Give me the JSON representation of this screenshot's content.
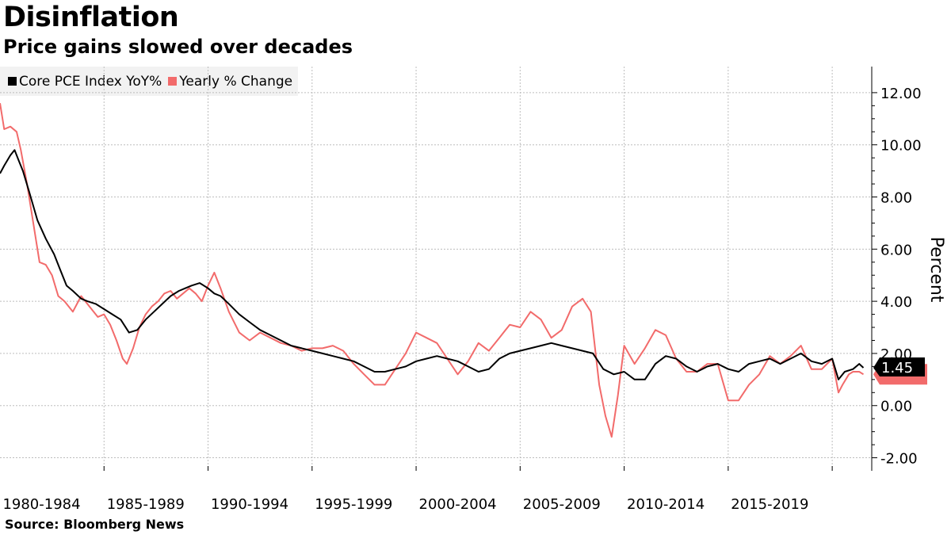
{
  "title": "Disinflation",
  "subtitle": "Price gains slowed over decades",
  "source": "Source: Bloomberg News",
  "chart_data": {
    "type": "line",
    "ylabel": "Percent",
    "ylim": [
      -2.5,
      13
    ],
    "yticks": [
      -2,
      0,
      2,
      4,
      6,
      8,
      10,
      12
    ],
    "ytick_labels": [
      "-2.00",
      "0.00",
      "2.00",
      "4.00",
      "6.00",
      "8.00",
      "10.00",
      "12.00"
    ],
    "xlim": [
      1980.0,
      2021.9
    ],
    "x_grid_years": [
      1985,
      1990,
      1995,
      2000,
      2005,
      2010,
      2015,
      2020
    ],
    "x_label_positions": [
      1982,
      1987,
      1992,
      1997,
      2002,
      2007,
      2012,
      2017
    ],
    "xtick_labels": [
      "1980-1984",
      "1985-1989",
      "1990-1994",
      "1995-1999",
      "2000-2004",
      "2005-2009",
      "2010-2014",
      "2015-2019"
    ],
    "grid": true,
    "last_value_label": "1.45",
    "series": [
      {
        "name": "Core PCE Index YoY%",
        "color": "#000000",
        "x": [
          1980.0,
          1980.2,
          1980.5,
          1980.7,
          1980.9,
          1981.1,
          1981.4,
          1981.8,
          1982.2,
          1982.6,
          1982.9,
          1983.2,
          1983.5,
          1983.9,
          1984.2,
          1984.6,
          1985.0,
          1985.4,
          1985.8,
          1986.2,
          1986.6,
          1987.0,
          1987.4,
          1987.8,
          1988.2,
          1988.6,
          1988.9,
          1989.2,
          1989.6,
          1990.0,
          1990.3,
          1990.6,
          1991.0,
          1991.5,
          1992.0,
          1992.5,
          1993.0,
          1993.5,
          1994.0,
          1994.5,
          1995.0,
          1995.5,
          1996.0,
          1996.5,
          1997.0,
          1997.5,
          1998.0,
          1998.5,
          1999.0,
          1999.5,
          2000.0,
          2000.5,
          2001.0,
          2001.5,
          2002.0,
          2002.5,
          2003.0,
          2003.5,
          2004.0,
          2004.5,
          2005.0,
          2005.5,
          2006.0,
          2006.5,
          2007.0,
          2007.5,
          2008.0,
          2008.5,
          2009.0,
          2009.5,
          2010.0,
          2010.5,
          2011.0,
          2011.5,
          2012.0,
          2012.5,
          2013.0,
          2013.5,
          2014.0,
          2014.5,
          2015.0,
          2015.5,
          2016.0,
          2016.5,
          2017.0,
          2017.5,
          2018.0,
          2018.5,
          2019.0,
          2019.5,
          2020.0,
          2020.3,
          2020.6,
          2021.0,
          2021.3,
          2021.5
        ],
        "values": [
          8.9,
          9.2,
          9.6,
          9.8,
          9.4,
          9.0,
          8.2,
          7.1,
          6.4,
          5.8,
          5.2,
          4.6,
          4.4,
          4.1,
          4.0,
          3.9,
          3.7,
          3.5,
          3.3,
          2.8,
          2.9,
          3.3,
          3.6,
          3.9,
          4.2,
          4.4,
          4.5,
          4.6,
          4.7,
          4.5,
          4.3,
          4.2,
          3.9,
          3.5,
          3.2,
          2.9,
          2.7,
          2.5,
          2.3,
          2.2,
          2.1,
          2.0,
          1.9,
          1.8,
          1.7,
          1.5,
          1.3,
          1.3,
          1.4,
          1.5,
          1.7,
          1.8,
          1.9,
          1.8,
          1.7,
          1.5,
          1.3,
          1.4,
          1.8,
          2.0,
          2.1,
          2.2,
          2.3,
          2.4,
          2.3,
          2.2,
          2.1,
          2.0,
          1.4,
          1.2,
          1.3,
          1.0,
          1.0,
          1.6,
          1.9,
          1.8,
          1.5,
          1.3,
          1.5,
          1.6,
          1.4,
          1.3,
          1.6,
          1.7,
          1.8,
          1.6,
          1.8,
          2.0,
          1.7,
          1.6,
          1.8,
          1.0,
          1.3,
          1.4,
          1.6,
          1.45
        ]
      },
      {
        "name": "Yearly % Change",
        "color": "#f26b6b",
        "x": [
          1980.0,
          1980.2,
          1980.5,
          1980.8,
          1981.0,
          1981.3,
          1981.6,
          1981.9,
          1982.2,
          1982.5,
          1982.8,
          1983.1,
          1983.5,
          1983.9,
          1984.3,
          1984.7,
          1985.0,
          1985.3,
          1985.6,
          1985.9,
          1986.1,
          1986.4,
          1986.7,
          1987.0,
          1987.3,
          1987.6,
          1987.9,
          1988.2,
          1988.5,
          1988.8,
          1989.1,
          1989.4,
          1989.7,
          1990.0,
          1990.3,
          1990.6,
          1991.0,
          1991.5,
          1992.0,
          1992.5,
          1993.0,
          1993.5,
          1994.0,
          1994.5,
          1995.0,
          1995.5,
          1996.0,
          1996.5,
          1997.0,
          1997.5,
          1998.0,
          1998.5,
          1999.0,
          1999.5,
          2000.0,
          2000.5,
          2001.0,
          2001.5,
          2002.0,
          2002.5,
          2003.0,
          2003.5,
          2004.0,
          2004.5,
          2005.0,
          2005.5,
          2006.0,
          2006.5,
          2007.0,
          2007.5,
          2008.0,
          2008.4,
          2008.8,
          2009.1,
          2009.4,
          2009.7,
          2010.0,
          2010.5,
          2011.0,
          2011.5,
          2012.0,
          2012.5,
          2013.0,
          2013.5,
          2014.0,
          2014.5,
          2015.0,
          2015.5,
          2016.0,
          2016.5,
          2017.0,
          2017.5,
          2018.0,
          2018.5,
          2019.0,
          2019.5,
          2020.0,
          2020.3,
          2020.5,
          2020.8,
          2021.0,
          2021.3,
          2021.5
        ],
        "values": [
          11.6,
          10.6,
          10.7,
          10.5,
          9.8,
          8.5,
          7.0,
          5.5,
          5.4,
          5.0,
          4.2,
          4.0,
          3.6,
          4.2,
          3.8,
          3.4,
          3.5,
          3.1,
          2.5,
          1.8,
          1.6,
          2.2,
          3.0,
          3.5,
          3.8,
          4.0,
          4.3,
          4.4,
          4.1,
          4.3,
          4.5,
          4.3,
          4.0,
          4.6,
          5.1,
          4.5,
          3.6,
          2.8,
          2.5,
          2.8,
          2.6,
          2.4,
          2.3,
          2.1,
          2.2,
          2.2,
          2.3,
          2.1,
          1.6,
          1.2,
          0.8,
          0.8,
          1.4,
          2.0,
          2.8,
          2.6,
          2.4,
          1.8,
          1.2,
          1.7,
          2.4,
          2.1,
          2.6,
          3.1,
          3.0,
          3.6,
          3.3,
          2.6,
          2.9,
          3.8,
          4.1,
          3.6,
          0.8,
          -0.4,
          -1.2,
          0.4,
          2.3,
          1.6,
          2.2,
          2.9,
          2.7,
          1.8,
          1.3,
          1.3,
          1.6,
          1.6,
          0.2,
          0.2,
          0.8,
          1.2,
          1.9,
          1.6,
          1.9,
          2.3,
          1.4,
          1.4,
          1.8,
          0.5,
          0.8,
          1.2,
          1.3,
          1.3,
          1.2
        ]
      }
    ]
  }
}
